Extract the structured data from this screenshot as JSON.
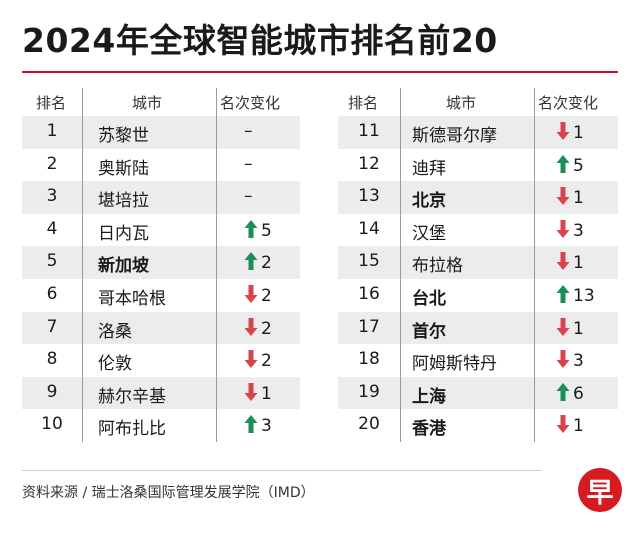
{
  "title": "2024年全球智能城市排名前20",
  "source": "资料来源 / 瑞士洛桑国际管理发展学院（IMD）",
  "logo_text": "早",
  "colors": {
    "up": "#1a8f5a",
    "down": "#d9434f",
    "rule": "#c8102e",
    "shade": "#ececec"
  },
  "chart_data": {
    "type": "table",
    "columns": [
      "排名",
      "城市",
      "名次变化"
    ],
    "rows": [
      {
        "rank": "1",
        "city": "苏黎世",
        "change": "–",
        "direction": "none",
        "bold": false
      },
      {
        "rank": "2",
        "city": "奥斯陆",
        "change": "–",
        "direction": "none",
        "bold": false
      },
      {
        "rank": "3",
        "city": "堪培拉",
        "change": "–",
        "direction": "none",
        "bold": false
      },
      {
        "rank": "4",
        "city": "日内瓦",
        "change": "5",
        "direction": "up",
        "bold": false
      },
      {
        "rank": "5",
        "city": "新加坡",
        "change": "2",
        "direction": "up",
        "bold": true
      },
      {
        "rank": "6",
        "city": "哥本哈根",
        "change": "2",
        "direction": "down",
        "bold": false
      },
      {
        "rank": "7",
        "city": "洛桑",
        "change": "2",
        "direction": "down",
        "bold": false
      },
      {
        "rank": "8",
        "city": "伦敦",
        "change": "2",
        "direction": "down",
        "bold": false
      },
      {
        "rank": "9",
        "city": "赫尔辛基",
        "change": "1",
        "direction": "down",
        "bold": false
      },
      {
        "rank": "10",
        "city": "阿布扎比",
        "change": "3",
        "direction": "up",
        "bold": false
      },
      {
        "rank": "11",
        "city": "斯德哥尔摩",
        "change": "1",
        "direction": "down",
        "bold": false
      },
      {
        "rank": "12",
        "city": "迪拜",
        "change": "5",
        "direction": "up",
        "bold": false
      },
      {
        "rank": "13",
        "city": "北京",
        "change": "1",
        "direction": "down",
        "bold": true
      },
      {
        "rank": "14",
        "city": "汉堡",
        "change": "3",
        "direction": "down",
        "bold": false
      },
      {
        "rank": "15",
        "city": "布拉格",
        "change": "1",
        "direction": "down",
        "bold": false
      },
      {
        "rank": "16",
        "city": "台北",
        "change": "13",
        "direction": "up",
        "bold": true
      },
      {
        "rank": "17",
        "city": "首尔",
        "change": "1",
        "direction": "down",
        "bold": true
      },
      {
        "rank": "18",
        "city": "阿姆斯特丹",
        "change": "3",
        "direction": "down",
        "bold": false
      },
      {
        "rank": "19",
        "city": "上海",
        "change": "6",
        "direction": "up",
        "bold": true
      },
      {
        "rank": "20",
        "city": "香港",
        "change": "1",
        "direction": "down",
        "bold": true
      }
    ]
  }
}
